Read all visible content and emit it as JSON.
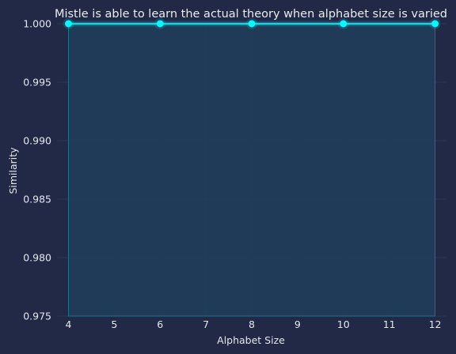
{
  "chart_data": {
    "type": "line",
    "title": "Mistle is able to learn the actual theory when alphabet size is varied",
    "xlabel": "Alphabet Size",
    "ylabel": "Similarity",
    "x": [
      4,
      6,
      8,
      10,
      12
    ],
    "series": [
      {
        "name": "Similarity",
        "values": [
          1.0,
          1.0,
          1.0,
          1.0,
          1.0
        ]
      }
    ],
    "xlim": [
      3.75,
      12.25
    ],
    "ylim": [
      0.975,
      1.0
    ],
    "xticks": [
      4,
      5,
      6,
      7,
      8,
      9,
      10,
      11,
      12
    ],
    "xtick_labels": [
      "4",
      "5",
      "6",
      "7",
      "8",
      "9",
      "10",
      "11",
      "12"
    ],
    "yticks": [
      0.975,
      0.98,
      0.985,
      0.99,
      0.995,
      1.0
    ],
    "ytick_labels": [
      "0.975",
      "0.980",
      "0.985",
      "0.990",
      "0.995",
      "1.000"
    ],
    "grid": true,
    "filled_area": true
  },
  "colors": {
    "background": "#212946",
    "grid": "#2a3f5f",
    "line": "#08F7FE",
    "fill": "#1f3d5a",
    "text": "#e4e6ee"
  }
}
